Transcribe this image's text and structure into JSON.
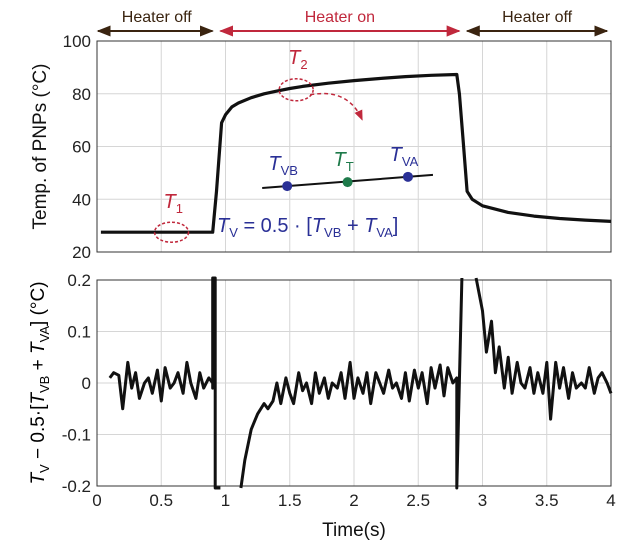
{
  "chart_data": [
    {
      "type": "line",
      "ylabel": "Temp. of PNPs (°C)",
      "xlim": [
        0,
        4
      ],
      "ylim": [
        20,
        100
      ],
      "yticks": [
        20,
        40,
        60,
        80,
        100
      ],
      "grid": true,
      "phases": [
        {
          "label": "Heater off",
          "x": [
            0,
            0.93
          ],
          "color": "#3a2410"
        },
        {
          "label": "Heater on",
          "x": [
            0.93,
            2.85
          ],
          "color": "#c0283c"
        },
        {
          "label": "Heater off",
          "x": [
            2.85,
            4
          ],
          "color": "#3a2410"
        }
      ],
      "series": [
        {
          "color": "#111111",
          "x": [
            0.03,
            0.9,
            0.93,
            0.97,
            1.0,
            1.05,
            1.1,
            1.2,
            1.3,
            1.4,
            1.5,
            1.6,
            1.8,
            2.0,
            2.2,
            2.4,
            2.6,
            2.8,
            2.82,
            2.85,
            2.88,
            2.92,
            3.0,
            3.2,
            3.4,
            3.6,
            3.8,
            4.0
          ],
          "y": [
            27.5,
            27.5,
            43,
            69,
            72,
            75,
            76.5,
            78.5,
            80,
            81,
            82,
            82.8,
            84,
            85,
            85.8,
            86.5,
            87,
            87.3,
            80,
            62,
            43,
            40,
            37.5,
            35,
            33.6,
            32.7,
            32.1,
            31.6
          ]
        }
      ],
      "annotations": {
        "t1": {
          "label": "T",
          "sub": "1",
          "x": 0.58,
          "y": 27.5
        },
        "t2": {
          "label": "T",
          "sub": "2",
          "x": 1.55,
          "y": 81.5
        },
        "tvb": {
          "label": "T",
          "sub": "VB",
          "x": 1.48,
          "y": 45
        },
        "tt": {
          "label": "T",
          "sub": "T",
          "x": 1.95,
          "y": 46.5
        },
        "tva": {
          "label": "T",
          "sub": "VA",
          "x": 2.42,
          "y": 48.5
        },
        "tvb_color": "#2a3096",
        "tt_color": "#1e7a4a",
        "tva_color": "#2a3096",
        "annot_color": "#c0283c",
        "eq_lhs": "T",
        "eq_lhs_sub": "V",
        "eq_eq": " = 0.5 · [",
        "eq_t": "T",
        "eq_sub1": "VB",
        "eq_plus": " + ",
        "eq_sub2": "VA",
        "eq_end": "]",
        "eq_color": "#2a3096"
      }
    },
    {
      "type": "line",
      "xlabel": "Time(s)",
      "ylabel_parts": {
        "a": "T",
        "a_sub": "V",
        "b": " − 0.5·[",
        "c": "T",
        "c_sub": "VB",
        "d": " + ",
        "e": "T",
        "e_sub": "VA",
        "f": "] (°C)"
      },
      "xlim": [
        0,
        4
      ],
      "ylim": [
        -0.2,
        0.2
      ],
      "xticks": [
        0,
        0.5,
        1,
        1.5,
        2,
        2.5,
        3,
        3.5,
        4
      ],
      "yticks": [
        -0.2,
        -0.1,
        0,
        0.1,
        0.2
      ],
      "grid": true,
      "series": [
        {
          "color": "#111111",
          "x": [
            0.1,
            0.13,
            0.17,
            0.2,
            0.24,
            0.27,
            0.3,
            0.33,
            0.37,
            0.4,
            0.43,
            0.47,
            0.5,
            0.53,
            0.57,
            0.6,
            0.63,
            0.67,
            0.7,
            0.73,
            0.77,
            0.8,
            0.83,
            0.87,
            0.9,
            0.9,
            0.9,
            0.92,
            0.92,
            0.96,
            0.96
          ],
          "y": [
            0.01,
            0.02,
            0.015,
            -0.05,
            0.04,
            -0.01,
            0.02,
            -0.03,
            0.0,
            0.01,
            -0.02,
            0.025,
            -0.035,
            0.03,
            -0.01,
            0.0,
            0.02,
            -0.02,
            0.04,
            0.0,
            -0.03,
            0.02,
            -0.01,
            0.01,
            0.0,
            -0.01,
            0.22,
            0.22,
            -0.21,
            -0.21,
            -0.21
          ]
        },
        {
          "color": "#111111",
          "x": [
            1.12,
            1.15,
            1.2,
            1.25,
            1.3,
            1.33,
            1.37,
            1.4,
            1.43,
            1.47,
            1.5,
            1.53,
            1.57,
            1.6,
            1.63,
            1.67,
            1.7,
            1.73,
            1.77,
            1.8,
            1.83,
            1.87,
            1.9,
            1.93,
            1.97,
            2.0,
            2.03,
            2.07,
            2.1,
            2.13,
            2.17,
            2.2,
            2.23,
            2.27,
            2.3,
            2.33,
            2.37,
            2.4,
            2.43,
            2.47,
            2.5,
            2.53,
            2.57,
            2.6,
            2.63,
            2.67,
            2.7,
            2.73,
            2.77,
            2.8,
            2.8,
            2.8,
            2.84,
            2.84
          ],
          "y": [
            -0.21,
            -0.15,
            -0.09,
            -0.06,
            -0.04,
            -0.05,
            -0.035,
            0.0,
            -0.04,
            0.01,
            -0.02,
            -0.04,
            0.02,
            -0.015,
            0.0,
            -0.04,
            0.02,
            -0.02,
            0.01,
            -0.03,
            0.0,
            -0.01,
            0.02,
            -0.03,
            0.04,
            -0.03,
            0.01,
            -0.02,
            0.02,
            -0.04,
            0.02,
            0.0,
            -0.02,
            0.025,
            -0.01,
            0.0,
            -0.03,
            0.02,
            -0.035,
            0.025,
            -0.01,
            0.02,
            -0.04,
            0.03,
            -0.01,
            0.035,
            -0.025,
            0.03,
            0.0,
            0.01,
            -0.21,
            -0.21,
            0.22,
            0.22
          ]
        },
        {
          "color": "#111111",
          "x": [
            2.95,
            3.0,
            3.03,
            3.07,
            3.1,
            3.13,
            3.17,
            3.2,
            3.23,
            3.27,
            3.3,
            3.33,
            3.37,
            3.4,
            3.43,
            3.47,
            3.5,
            3.53,
            3.57,
            3.6,
            3.63,
            3.67,
            3.7,
            3.73,
            3.77,
            3.8,
            3.83,
            3.87,
            3.9,
            3.93,
            3.97,
            4.0
          ],
          "y": [
            0.21,
            0.14,
            0.06,
            0.12,
            0.02,
            0.07,
            -0.01,
            0.05,
            -0.02,
            0.04,
            0.0,
            -0.01,
            0.03,
            -0.02,
            0.02,
            -0.02,
            0.04,
            -0.07,
            0.04,
            -0.01,
            0.03,
            -0.03,
            0.02,
            -0.01,
            0.0,
            -0.01,
            0.03,
            -0.02,
            0.01,
            0.02,
            0.0,
            -0.02
          ]
        }
      ]
    }
  ]
}
